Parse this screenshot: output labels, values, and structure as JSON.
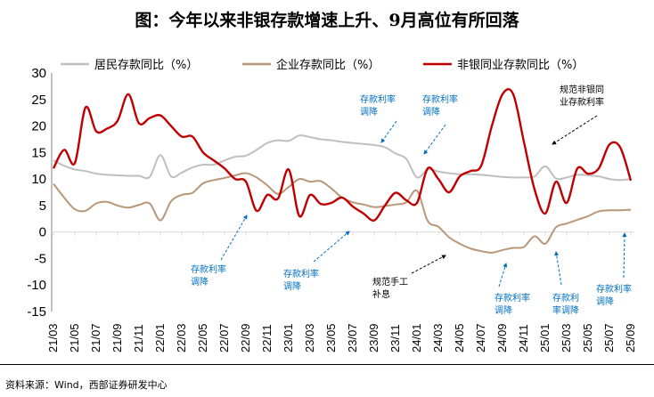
{
  "title": "图：今年以来非银存款增速上升、9月高位有所回落",
  "source": "资料来源：Wind，西部证券研发中心",
  "chart_data": {
    "type": "line",
    "ylim": [
      -15,
      30
    ],
    "yticks": [
      30,
      25,
      20,
      15,
      10,
      5,
      0,
      -5,
      -10,
      -15
    ],
    "x": [
      "21/03",
      "21/04",
      "21/05",
      "21/06",
      "21/07",
      "21/08",
      "21/09",
      "21/10",
      "21/11",
      "21/12",
      "22/01",
      "22/02",
      "22/03",
      "22/04",
      "22/05",
      "22/06",
      "22/07",
      "22/08",
      "22/09",
      "22/10",
      "22/11",
      "22/12",
      "23/01",
      "23/02",
      "23/03",
      "23/04",
      "23/05",
      "23/06",
      "23/07",
      "23/08",
      "23/09",
      "23/10",
      "23/11",
      "23/12",
      "24/01",
      "24/02",
      "24/03",
      "24/04",
      "24/05",
      "24/06",
      "24/07",
      "24/08",
      "24/09",
      "24/10",
      "24/11",
      "24/12",
      "25/01",
      "25/02",
      "25/03",
      "25/04",
      "25/05",
      "25/06",
      "25/07",
      "25/08",
      "25/09"
    ],
    "xtick_labels": [
      "21/03",
      "21/05",
      "21/07",
      "21/09",
      "21/11",
      "22/01",
      "22/03",
      "22/05",
      "22/07",
      "22/09",
      "22/11",
      "23/01",
      "23/03",
      "23/05",
      "23/07",
      "23/09",
      "23/11",
      "24/01",
      "24/03",
      "24/05",
      "24/07",
      "24/09",
      "24/11",
      "25/01",
      "25/03",
      "25/05",
      "25/07",
      "25/09"
    ],
    "legend_position": "top",
    "grid": false,
    "series": [
      {
        "name": "居民存款同比（%）",
        "color": "#BFBFBF",
        "values": [
          13.5,
          12.5,
          11.8,
          11.5,
          11.0,
          10.8,
          10.7,
          10.6,
          10.6,
          10.4,
          14.5,
          10.5,
          11.2,
          12.2,
          12.7,
          12.7,
          13.5,
          14.2,
          14.4,
          15.5,
          16.8,
          17.3,
          17.2,
          18.2,
          17.9,
          17.5,
          17.3,
          17.0,
          16.8,
          16.6,
          16.4,
          16.0,
          14.8,
          13.8,
          10.3,
          11.8,
          11.4,
          11.1,
          10.9,
          10.9,
          10.8,
          10.6,
          10.4,
          10.3,
          10.3,
          10.5,
          12.4,
          10.1,
          10.3,
          10.8,
          10.7,
          10.5,
          10.0,
          9.8,
          10.0
        ]
      },
      {
        "name": "企业存款同比（%）",
        "color": "#B9977A",
        "values": [
          9.1,
          6.5,
          4.3,
          4.0,
          5.4,
          5.7,
          5.0,
          4.6,
          5.1,
          5.4,
          2.2,
          5.8,
          7.0,
          7.4,
          9.2,
          9.8,
          10.2,
          10.7,
          11.1,
          10.3,
          8.8,
          7.2,
          8.5,
          10.0,
          9.5,
          9.6,
          8.2,
          6.5,
          5.6,
          5.2,
          4.7,
          4.9,
          5.2,
          5.6,
          7.8,
          2.1,
          1.0,
          -1.0,
          -2.2,
          -3.1,
          -3.6,
          -3.9,
          -3.4,
          -3.0,
          -2.8,
          -0.8,
          -2.2,
          0.9,
          1.6,
          2.3,
          3.0,
          3.9,
          4.1,
          4.1,
          4.2
        ]
      },
      {
        "name": "非银同业存款同比（%）",
        "color": "#C00000",
        "values": [
          12,
          15.5,
          13,
          23.5,
          19,
          19.5,
          21,
          26,
          20.5,
          21.5,
          22,
          20,
          18,
          18,
          15,
          13.5,
          12,
          10,
          9.5,
          4,
          7,
          6.3,
          11.8,
          3,
          7,
          5.3,
          5.5,
          6.5,
          4.8,
          3.5,
          2.2,
          5,
          7.4,
          6,
          5.5,
          12,
          10,
          7.5,
          10.5,
          11.5,
          12.5,
          20,
          26,
          26,
          17,
          8,
          3.5,
          9.5,
          5.5,
          12,
          11,
          12,
          16.5,
          16,
          9.7
        ]
      }
    ],
    "annotations": [
      {
        "text": [
          "存款利率",
          "调降"
        ],
        "color": "#0070C0",
        "target": "22/08"
      },
      {
        "text": [
          "存款利率",
          "调降"
        ],
        "color": "#0070C0",
        "target": "23/08"
      },
      {
        "text": [
          "存款利率",
          "调降"
        ],
        "color": "#0070C0",
        "target": "23/10"
      },
      {
        "text": [
          "存款利率",
          "调降"
        ],
        "color": "#0070C0",
        "target": "23/12"
      },
      {
        "text": [
          "规范手工",
          "补息"
        ],
        "color": "#000000",
        "target": "24/04"
      },
      {
        "text": [
          "存款利率",
          "调降"
        ],
        "color": "#0070C0",
        "target": "24/09"
      },
      {
        "text": [
          "存款利",
          "率调降"
        ],
        "color": "#0070C0",
        "target": "25/03"
      },
      {
        "text": [
          "存款利率",
          "调降"
        ],
        "color": "#0070C0",
        "target": "25/09"
      },
      {
        "text": [
          "规范非银同",
          "业存款利率"
        ],
        "color": "#000000",
        "target": "24/12"
      }
    ]
  }
}
